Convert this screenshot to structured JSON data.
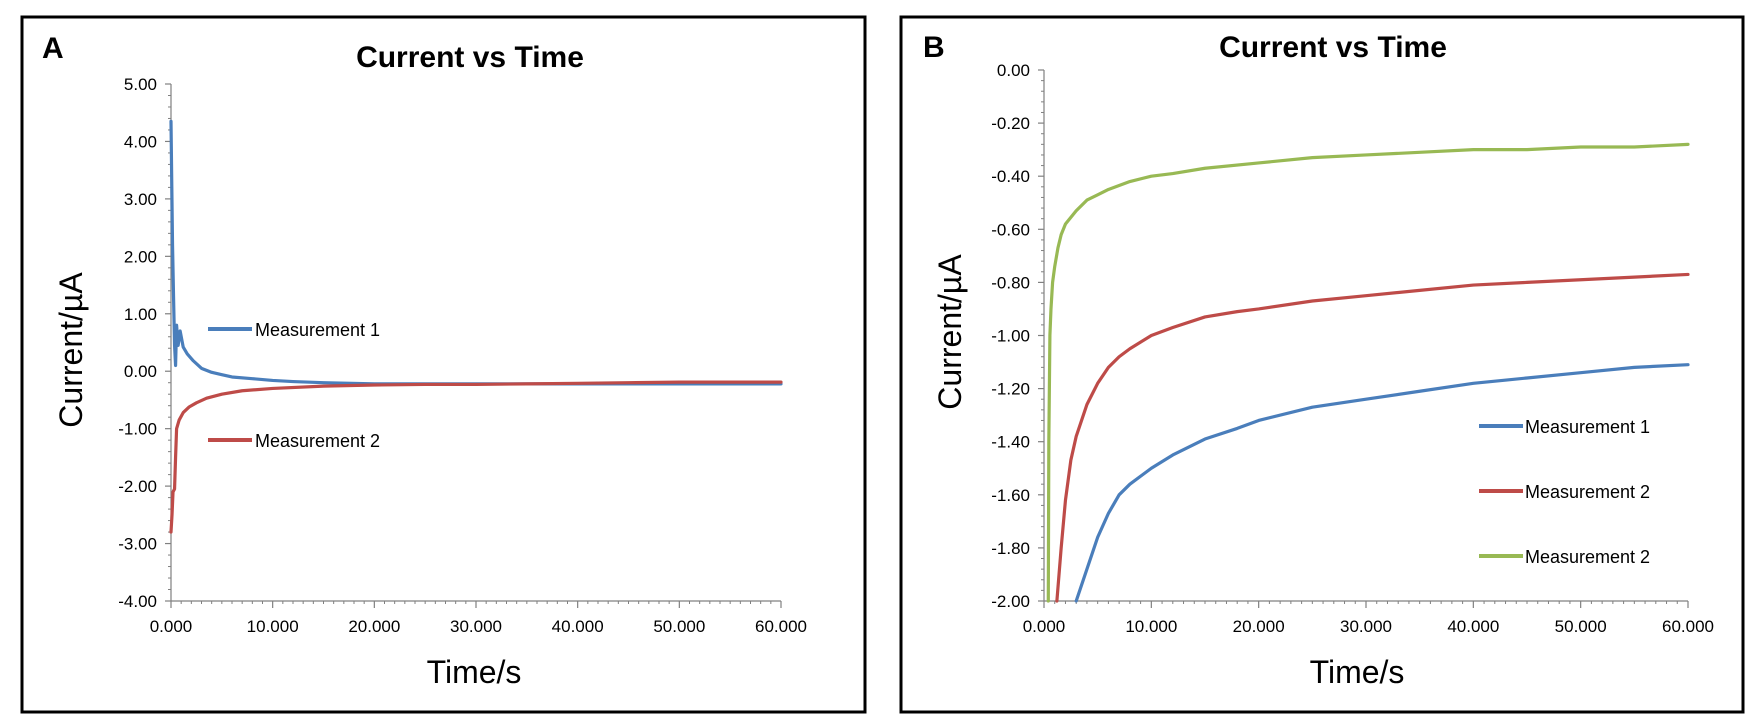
{
  "chart_data": [
    {
      "panel_label": "A",
      "type": "line",
      "title": "Current vs Time",
      "xlabel": "Time/s",
      "ylabel": "Current/µA",
      "xlim": [
        0,
        60
      ],
      "ylim": [
        -4,
        5
      ],
      "x_ticks": [
        "0.000",
        "10.000",
        "20.000",
        "30.000",
        "40.000",
        "50.000",
        "60.000"
      ],
      "y_ticks": [
        "5.00",
        "4.00",
        "3.00",
        "2.00",
        "1.00",
        "0.00",
        "-1.00",
        "-2.00",
        "-3.00",
        "-4.00"
      ],
      "legend_position": "left-middle",
      "grid": false,
      "series": [
        {
          "name": "Measurement 1",
          "color": "#4a7ebb",
          "points": [
            [
              0,
              4.35
            ],
            [
              0.08,
              3.2
            ],
            [
              0.15,
              2.2
            ],
            [
              0.25,
              1.3
            ],
            [
              0.35,
              0.45
            ],
            [
              0.45,
              0.1
            ],
            [
              0.55,
              0.8
            ],
            [
              0.7,
              0.45
            ],
            [
              0.9,
              0.7
            ],
            [
              1.2,
              0.42
            ],
            [
              1.6,
              0.3
            ],
            [
              2.2,
              0.18
            ],
            [
              3,
              0.05
            ],
            [
              4,
              -0.02
            ],
            [
              5,
              -0.06
            ],
            [
              6,
              -0.1
            ],
            [
              8,
              -0.13
            ],
            [
              10,
              -0.16
            ],
            [
              12,
              -0.18
            ],
            [
              15,
              -0.2
            ],
            [
              20,
              -0.22
            ],
            [
              25,
              -0.22
            ],
            [
              30,
              -0.22
            ],
            [
              35,
              -0.22
            ],
            [
              40,
              -0.22
            ],
            [
              45,
              -0.22
            ],
            [
              50,
              -0.22
            ],
            [
              55,
              -0.22
            ],
            [
              60,
              -0.22
            ]
          ]
        },
        {
          "name": "Measurement 2",
          "color": "#be4b48",
          "points": [
            [
              0,
              -2.8
            ],
            [
              0.1,
              -2.5
            ],
            [
              0.2,
              -2.1
            ],
            [
              0.35,
              -2.05
            ],
            [
              0.45,
              -1.5
            ],
            [
              0.55,
              -1.0
            ],
            [
              0.8,
              -0.85
            ],
            [
              1.2,
              -0.72
            ],
            [
              1.8,
              -0.62
            ],
            [
              2.5,
              -0.55
            ],
            [
              3.5,
              -0.47
            ],
            [
              5,
              -0.4
            ],
            [
              7,
              -0.34
            ],
            [
              10,
              -0.3
            ],
            [
              15,
              -0.26
            ],
            [
              20,
              -0.24
            ],
            [
              25,
              -0.23
            ],
            [
              30,
              -0.23
            ],
            [
              35,
              -0.22
            ],
            [
              40,
              -0.21
            ],
            [
              45,
              -0.2
            ],
            [
              50,
              -0.19
            ],
            [
              55,
              -0.19
            ],
            [
              60,
              -0.19
            ]
          ]
        }
      ]
    },
    {
      "panel_label": "B",
      "type": "line",
      "title": "Current vs Time",
      "xlabel": "Time/s",
      "ylabel": "Current/µA",
      "xlim": [
        0,
        60
      ],
      "ylim": [
        -2,
        0
      ],
      "x_ticks": [
        "0.000",
        "10.000",
        "20.000",
        "30.000",
        "40.000",
        "50.000",
        "60.000"
      ],
      "y_ticks": [
        "0.00",
        "-0.20",
        "-0.40",
        "-0.60",
        "-0.80",
        "-1.00",
        "-1.20",
        "-1.40",
        "-1.60",
        "-1.80",
        "-2.00"
      ],
      "legend_position": "bottom-right",
      "grid": false,
      "series": [
        {
          "name": "Measurement 1",
          "color": "#4a7ebb",
          "points": [
            [
              3,
              -2.0
            ],
            [
              4,
              -1.88
            ],
            [
              5,
              -1.76
            ],
            [
              6,
              -1.67
            ],
            [
              7,
              -1.6
            ],
            [
              8,
              -1.56
            ],
            [
              10,
              -1.5
            ],
            [
              12,
              -1.45
            ],
            [
              15,
              -1.39
            ],
            [
              18,
              -1.35
            ],
            [
              20,
              -1.32
            ],
            [
              25,
              -1.27
            ],
            [
              30,
              -1.24
            ],
            [
              35,
              -1.21
            ],
            [
              40,
              -1.18
            ],
            [
              45,
              -1.16
            ],
            [
              50,
              -1.14
            ],
            [
              55,
              -1.12
            ],
            [
              60,
              -1.11
            ]
          ]
        },
        {
          "name": "Measurement 2",
          "color": "#be4b48",
          "points": [
            [
              1.2,
              -2.0
            ],
            [
              1.6,
              -1.8
            ],
            [
              2,
              -1.62
            ],
            [
              2.5,
              -1.47
            ],
            [
              3,
              -1.38
            ],
            [
              4,
              -1.26
            ],
            [
              5,
              -1.18
            ],
            [
              6,
              -1.12
            ],
            [
              7,
              -1.08
            ],
            [
              8,
              -1.05
            ],
            [
              10,
              -1.0
            ],
            [
              12,
              -0.97
            ],
            [
              15,
              -0.93
            ],
            [
              18,
              -0.91
            ],
            [
              20,
              -0.9
            ],
            [
              25,
              -0.87
            ],
            [
              30,
              -0.85
            ],
            [
              35,
              -0.83
            ],
            [
              40,
              -0.81
            ],
            [
              45,
              -0.8
            ],
            [
              50,
              -0.79
            ],
            [
              55,
              -0.78
            ],
            [
              60,
              -0.77
            ]
          ]
        },
        {
          "name": "Measurement 2",
          "color": "#98b954",
          "points": [
            [
              0.4,
              -2.0
            ],
            [
              0.45,
              -1.4
            ],
            [
              0.55,
              -1.0
            ],
            [
              0.65,
              -0.9
            ],
            [
              0.8,
              -0.8
            ],
            [
              1.0,
              -0.74
            ],
            [
              1.3,
              -0.67
            ],
            [
              1.6,
              -0.62
            ],
            [
              2,
              -0.58
            ],
            [
              3,
              -0.53
            ],
            [
              4,
              -0.49
            ],
            [
              5,
              -0.47
            ],
            [
              6,
              -0.45
            ],
            [
              8,
              -0.42
            ],
            [
              10,
              -0.4
            ],
            [
              12,
              -0.39
            ],
            [
              15,
              -0.37
            ],
            [
              20,
              -0.35
            ],
            [
              25,
              -0.33
            ],
            [
              30,
              -0.32
            ],
            [
              35,
              -0.31
            ],
            [
              40,
              -0.3
            ],
            [
              45,
              -0.3
            ],
            [
              50,
              -0.29
            ],
            [
              55,
              -0.29
            ],
            [
              60,
              -0.28
            ]
          ]
        }
      ]
    }
  ]
}
